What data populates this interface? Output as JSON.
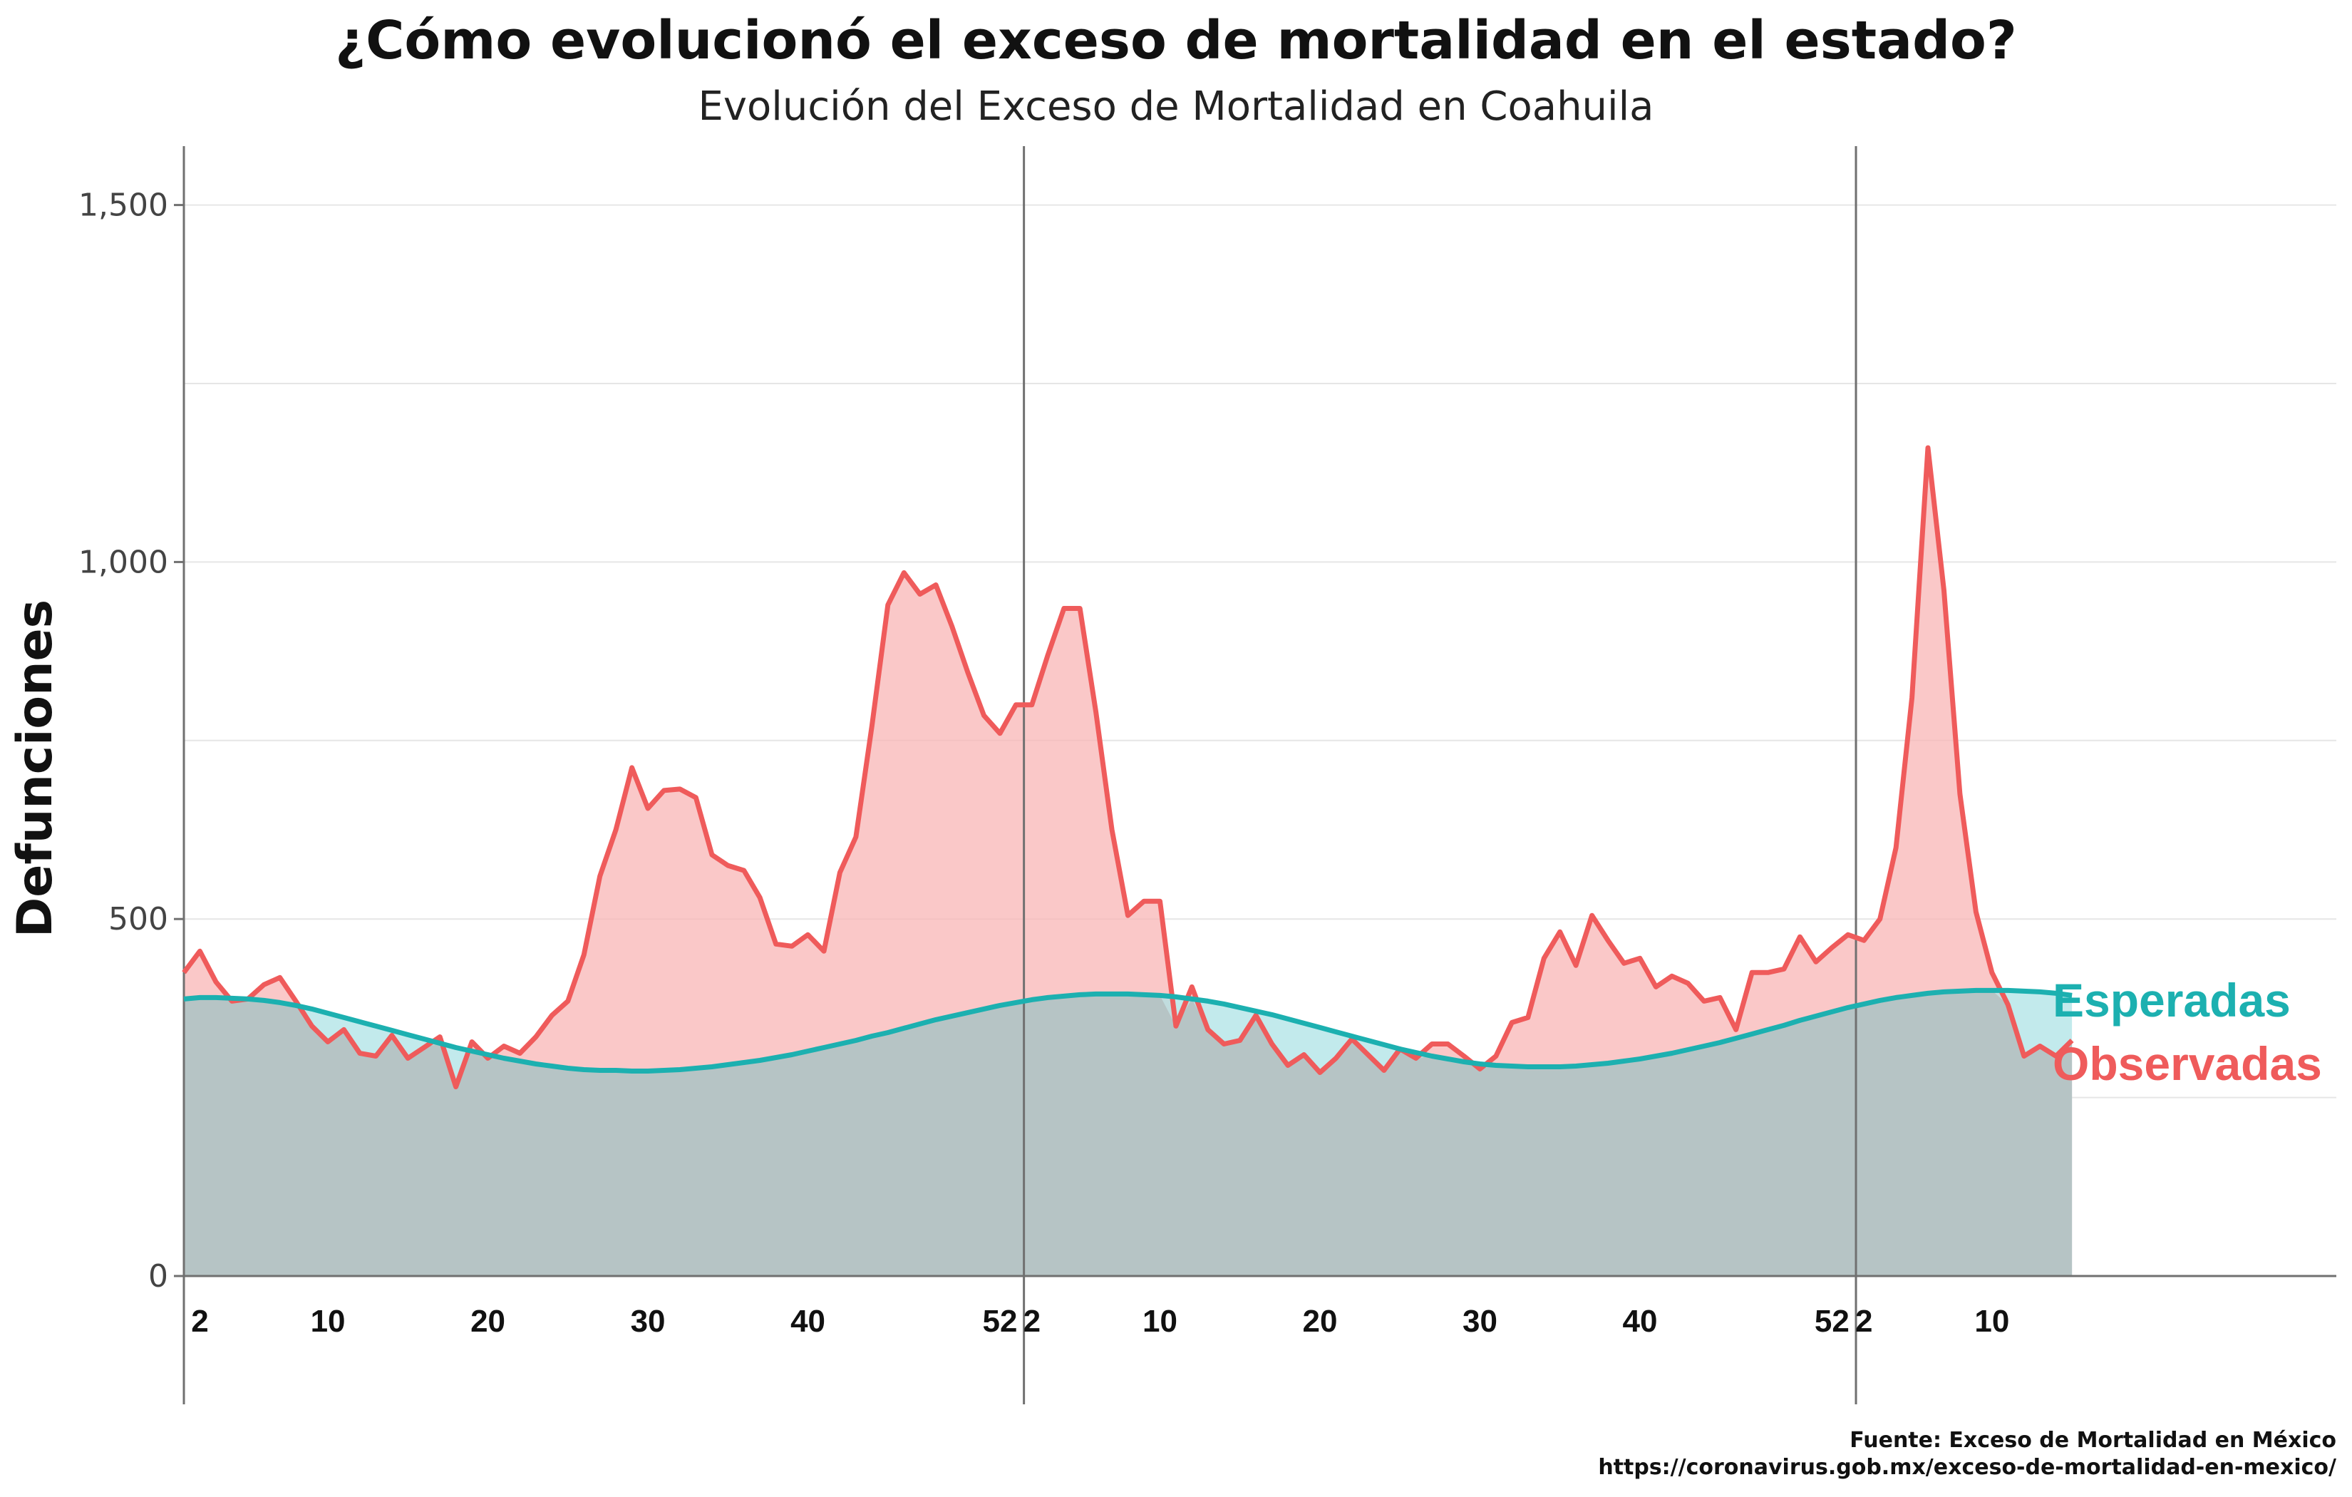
{
  "chart_data": {
    "type": "area",
    "title": "¿Cómo evolucionó el exceso de mortalidad en el estado?",
    "subtitle": "Evolución del Exceso de Mortalidad en Coahuila",
    "xlabel": "",
    "ylabel": "Defunciones",
    "ylim": [
      0,
      1580
    ],
    "y_ticks": [
      0,
      500,
      1000,
      1500
    ],
    "y_tick_labels": [
      "0",
      "500",
      "1,000",
      "1,500"
    ],
    "grid": "horizontal-major-and-minor",
    "x_ticks": [
      {
        "index": 1,
        "label": "2"
      },
      {
        "index": 9,
        "label": "10"
      },
      {
        "index": 19,
        "label": "20"
      },
      {
        "index": 29,
        "label": "30"
      },
      {
        "index": 39,
        "label": "40"
      },
      {
        "index": 51,
        "label": "52"
      },
      {
        "index": 53,
        "label": "2"
      },
      {
        "index": 61,
        "label": "10"
      },
      {
        "index": 71,
        "label": "20"
      },
      {
        "index": 81,
        "label": "30"
      },
      {
        "index": 91,
        "label": "40"
      },
      {
        "index": 103,
        "label": "52"
      },
      {
        "index": 105,
        "label": "2"
      },
      {
        "index": 113,
        "label": "10"
      }
    ],
    "year_boundaries": [
      52.5,
      104.5
    ],
    "series": [
      {
        "name": "Observadas",
        "color": "#EF5B5B",
        "fill": "#F8B5B5",
        "values": [
          425,
          455,
          412,
          385,
          388,
          408,
          418,
          385,
          350,
          328,
          345,
          312,
          308,
          337,
          305,
          320,
          335,
          265,
          328,
          305,
          322,
          312,
          335,
          365,
          385,
          450,
          560,
          625,
          712,
          655,
          680,
          682,
          670,
          590,
          575,
          568,
          530,
          465,
          462,
          478,
          455,
          565,
          615,
          770,
          940,
          985,
          955,
          968,
          910,
          845,
          785,
          760,
          800,
          800,
          870,
          935,
          935,
          790,
          625,
          505,
          525,
          525,
          350,
          405,
          345,
          325,
          330,
          365,
          325,
          295,
          310,
          285,
          305,
          332,
          310,
          288,
          318,
          305,
          325,
          325,
          308,
          290,
          308,
          355,
          362,
          445,
          482,
          435,
          505,
          470,
          438,
          445,
          405,
          420,
          410,
          385,
          390,
          345,
          425,
          425,
          430,
          475,
          440,
          460,
          478,
          470,
          500,
          600,
          810,
          1160,
          960,
          675,
          510,
          425,
          380,
          308,
          322,
          308,
          330
        ]
      },
      {
        "name": "Esperadas",
        "color": "#1CB0B0",
        "fill": "#AEE3E6",
        "values": [
          388,
          390,
          390,
          389,
          388,
          386,
          383,
          379,
          374,
          368,
          362,
          356,
          350,
          344,
          338,
          332,
          326,
          320,
          315,
          310,
          305,
          301,
          297,
          294,
          291,
          289,
          288,
          288,
          287,
          287,
          288,
          289,
          291,
          293,
          296,
          299,
          302,
          306,
          310,
          315,
          320,
          325,
          330,
          336,
          341,
          347,
          353,
          359,
          364,
          369,
          374,
          379,
          383,
          387,
          390,
          392,
          394,
          395,
          395,
          395,
          394,
          393,
          391,
          388,
          385,
          381,
          376,
          371,
          366,
          360,
          354,
          348,
          342,
          336,
          330,
          324,
          318,
          313,
          308,
          304,
          300,
          297,
          295,
          294,
          293,
          293,
          293,
          294,
          296,
          298,
          301,
          304,
          308,
          312,
          317,
          322,
          327,
          333,
          339,
          345,
          351,
          358,
          364,
          370,
          376,
          381,
          386,
          390,
          393,
          396,
          398,
          399,
          400,
          400,
          400,
          399,
          398,
          396,
          393
        ]
      }
    ],
    "legend_placement": "right, inline at series end",
    "legend": [
      {
        "label": "Esperadas",
        "color": "#1CB0B0"
      },
      {
        "label": "Observadas",
        "color": "#EF5B5B"
      }
    ]
  },
  "source": {
    "line1": "Fuente: Exceso de Mortalidad en México",
    "line2": "https://coronavirus.gob.mx/exceso-de-mortalidad-en-mexico/"
  }
}
